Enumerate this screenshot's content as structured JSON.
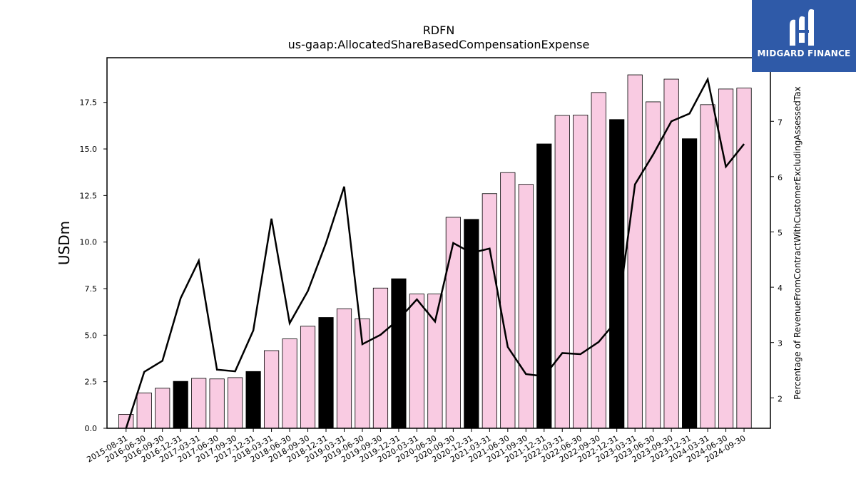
{
  "chart_data": {
    "type": "bar+line",
    "title": "RDFN",
    "subtitle": "us-gaap:AllocatedShareBasedCompensationExpense",
    "ylabel": "USDm",
    "y2label": "Percentage of RevenueFromContractWithCustomerExcludingAssessedTax",
    "ylim": [
      0,
      19.9
    ],
    "y2lim": [
      1.45,
      8.15
    ],
    "yticks": [
      "0.0",
      "2.5",
      "5.0",
      "7.5",
      "10.0",
      "12.5",
      "15.0",
      "17.5"
    ],
    "y2ticks": [
      "2",
      "3",
      "4",
      "5",
      "6",
      "7"
    ],
    "categories": [
      "2015-08-31",
      "2016-06-30",
      "2016-09-30",
      "2016-12-31",
      "2017-03-31",
      "2017-06-30",
      "2017-09-30",
      "2017-12-31",
      "2018-03-31",
      "2018-06-30",
      "2018-09-30",
      "2018-12-31",
      "2019-03-31",
      "2019-06-30",
      "2019-09-30",
      "2019-12-31",
      "2020-03-31",
      "2020-06-30",
      "2020-09-30",
      "2020-12-31",
      "2021-03-31",
      "2021-06-30",
      "2021-09-30",
      "2021-12-31",
      "2022-03-31",
      "2022-06-30",
      "2022-09-30",
      "2022-12-31",
      "2023-03-31",
      "2023-06-30",
      "2023-09-30",
      "2023-12-31",
      "2024-03-31",
      "2024-06-30",
      "2024-09-30"
    ],
    "bar_values": [
      0.75,
      1.9,
      2.15,
      2.52,
      2.68,
      2.65,
      2.72,
      3.05,
      4.17,
      4.8,
      5.48,
      5.95,
      6.42,
      5.88,
      7.53,
      8.03,
      7.21,
      7.21,
      11.33,
      11.22,
      12.6,
      13.73,
      13.1,
      15.27,
      16.8,
      16.82,
      18.03,
      16.58,
      18.98,
      17.53,
      18.75,
      15.55,
      17.38,
      18.22,
      18.27
    ],
    "bar_highlight": [
      false,
      false,
      false,
      true,
      false,
      false,
      false,
      true,
      false,
      false,
      false,
      true,
      false,
      false,
      false,
      true,
      false,
      false,
      false,
      true,
      false,
      false,
      false,
      true,
      false,
      false,
      false,
      true,
      false,
      false,
      false,
      true,
      false,
      false,
      false
    ],
    "line_values": [
      1.45,
      2.47,
      2.67,
      3.8,
      4.48,
      2.51,
      2.48,
      3.22,
      5.24,
      3.35,
      3.93,
      4.8,
      5.82,
      2.97,
      3.14,
      3.42,
      3.78,
      3.38,
      4.8,
      4.62,
      4.7,
      2.92,
      2.43,
      2.39,
      2.81,
      2.79,
      3.01,
      3.4,
      5.86,
      6.4,
      7.0,
      7.14,
      7.76,
      6.18,
      6.59
    ],
    "colors": {
      "bar_fill": "#f9cbe2",
      "bar_highlight_fill": "#000000",
      "bar_edge": "#000000",
      "line": "#000000"
    },
    "grid": false,
    "legend": "none"
  },
  "logo": {
    "text": "MIDGARD FINANCE",
    "background": "#2f5aa8"
  }
}
